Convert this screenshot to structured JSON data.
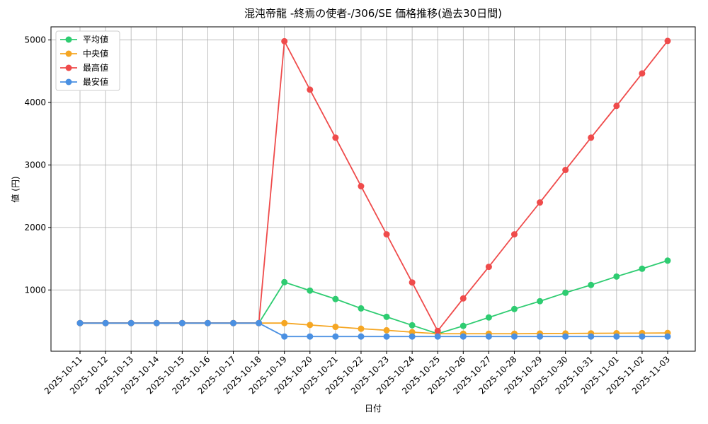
{
  "chart_data": {
    "type": "line",
    "title": "混沌帝龍 -終焉の使者-/306/SE 価格推移(過去30日間)",
    "x_label": "日付",
    "y_label": "値 (円)",
    "categories": [
      "2025-10-11",
      "2025-10-12",
      "2025-10-13",
      "2025-10-14",
      "2025-10-15",
      "2025-10-16",
      "2025-10-17",
      "2025-10-18",
      "2025-10-19",
      "2025-10-20",
      "2025-10-21",
      "2025-10-22",
      "2025-10-23",
      "2025-10-24",
      "2025-10-25",
      "2025-10-26",
      "2025-10-27",
      "2025-10-28",
      "2025-10-29",
      "2025-10-30",
      "2025-10-31",
      "2025-11-01",
      "2025-11-02",
      "2025-11-03"
    ],
    "series": [
      {
        "name": "平均値",
        "color": "#2ecc71",
        "values": [
          470,
          470,
          470,
          470,
          470,
          470,
          470,
          470,
          1125,
          990,
          855,
          705,
          570,
          435,
          300,
          425,
          560,
          695,
          820,
          955,
          1080,
          1215,
          1340,
          1470
        ]
      },
      {
        "name": "中央値",
        "color": "#f5a623",
        "values": [
          470,
          470,
          470,
          470,
          470,
          470,
          470,
          470,
          470,
          440,
          410,
          380,
          355,
          325,
          300,
          300,
          300,
          300,
          302,
          304,
          306,
          308,
          310,
          312
        ]
      },
      {
        "name": "最高値",
        "color": "#ef4b4b",
        "values": [
          470,
          470,
          470,
          470,
          470,
          470,
          470,
          470,
          4980,
          4205,
          3437,
          2660,
          1890,
          1120,
          345,
          865,
          1370,
          1890,
          2400,
          2920,
          3437,
          3945,
          4465,
          4985
        ]
      },
      {
        "name": "最安値",
        "color": "#4a90e2",
        "values": [
          470,
          470,
          470,
          470,
          470,
          470,
          470,
          470,
          255,
          255,
          255,
          255,
          255,
          255,
          255,
          255,
          255,
          255,
          255,
          255,
          255,
          255,
          255,
          255
        ]
      }
    ],
    "ylim": [
      20,
      5210
    ],
    "yticks": [
      1000,
      2000,
      3000,
      4000,
      5000
    ],
    "grid": true,
    "legend": "upper-left"
  }
}
